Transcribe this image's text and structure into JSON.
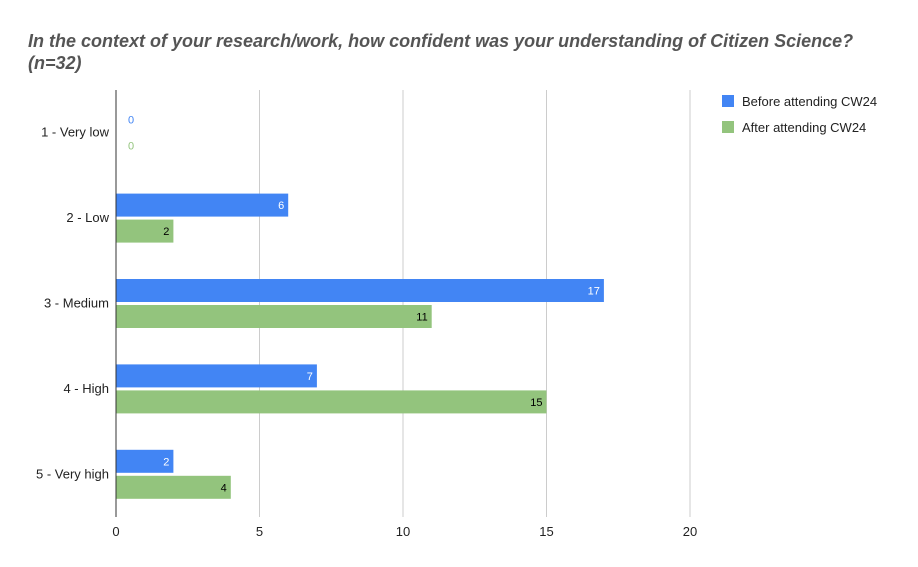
{
  "chart_data": {
    "type": "bar",
    "orientation": "horizontal",
    "title": "In the context of your research/work, how confident was your understanding of Citizen Science? (n=32)",
    "categories": [
      "1 - Very low",
      "2 - Low",
      "3 - Medium",
      "4 - High",
      "5 - Very high"
    ],
    "series": [
      {
        "name": "Before attending CW24",
        "color": "#4285f4",
        "label_color": "#ffffff",
        "values": [
          0,
          6,
          17,
          7,
          2
        ]
      },
      {
        "name": "After attending CW24",
        "color": "#93c47d",
        "label_color": "#000000",
        "values": [
          0,
          2,
          11,
          15,
          4
        ]
      }
    ],
    "xlim": [
      0,
      20
    ],
    "xticks": [
      0,
      5,
      10,
      15,
      20
    ],
    "grid": true,
    "legend": "top-right",
    "zero_label_colors": [
      "#4285f4",
      "#93c47d"
    ]
  }
}
